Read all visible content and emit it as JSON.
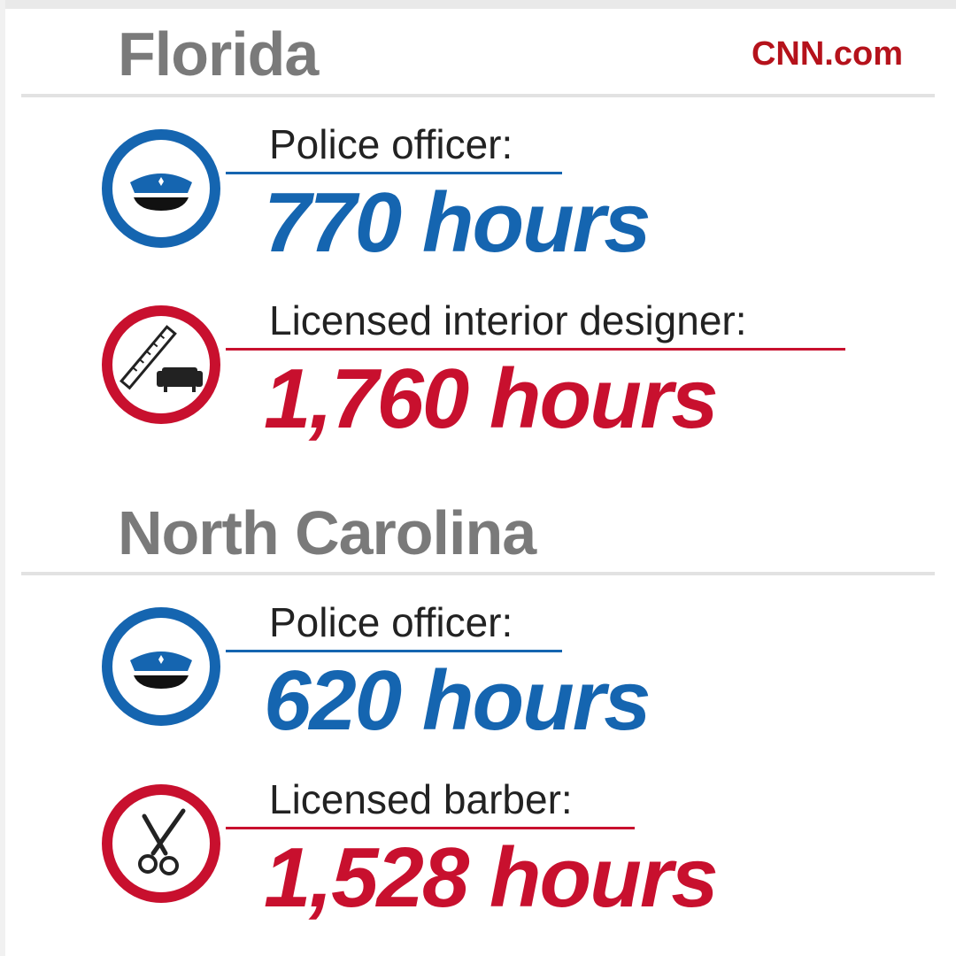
{
  "brand": "CNN.com",
  "colors": {
    "police_blue": "#1565b0",
    "red": "#c8102e",
    "heading_gray": "#7a7a7a"
  },
  "sections": [
    {
      "state": "Florida",
      "entries": [
        {
          "label": "Police officer:",
          "value": "770 hours",
          "icon": "police-cap-icon",
          "color": "blue"
        },
        {
          "label": "Licensed interior designer:",
          "value": "1,760 hours",
          "icon": "ruler-sofa-icon",
          "color": "red"
        }
      ]
    },
    {
      "state": "North Carolina",
      "entries": [
        {
          "label": "Police officer:",
          "value": "620 hours",
          "icon": "police-cap-icon",
          "color": "blue"
        },
        {
          "label": "Licensed barber:",
          "value": "1,528 hours",
          "icon": "scissors-icon",
          "color": "red"
        }
      ]
    }
  ]
}
